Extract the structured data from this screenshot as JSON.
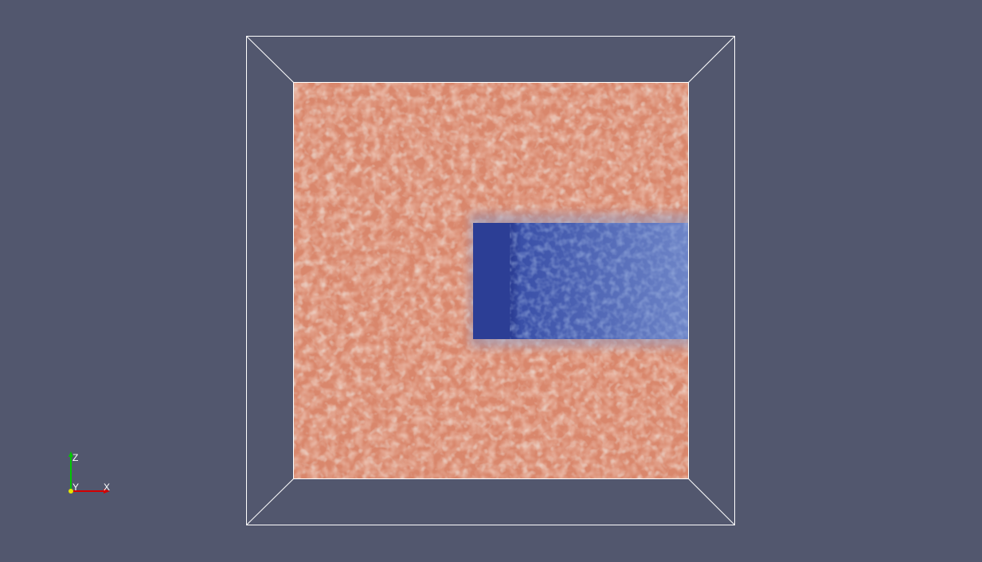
{
  "viewport": {
    "background_color": "#52576e",
    "outline_color": "#ffffff"
  },
  "field": {
    "high_color": "#d9876c",
    "high_dark_color": "#c45a3e",
    "high_light_color": "#d6b4a0",
    "low_color": "#3a50a8",
    "low_dark_color": "#2c3e95",
    "low_light_color": "#6f86c8"
  },
  "orientation_axes": {
    "x_label": "X",
    "y_label": "Y",
    "z_label": "Z",
    "x_color": "#d40000",
    "y_color": "#e6e600",
    "z_color": "#00c800"
  }
}
